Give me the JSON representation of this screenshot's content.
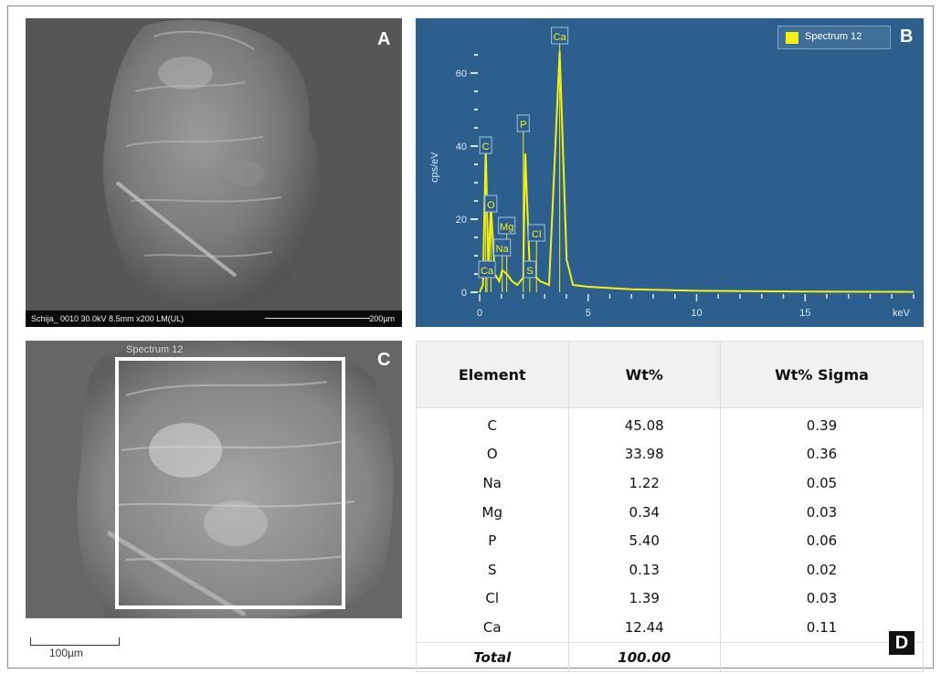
{
  "panels": {
    "a": {
      "letter": "A",
      "sem_info": "Schija_ 0010 30.0kV 8.5mm x200 LM(UL)",
      "scale_label": "200µm"
    },
    "b": {
      "letter": "B",
      "legend_label": "Spectrum 12"
    },
    "c": {
      "letter": "C",
      "roi_label": "Spectrum 12",
      "scale_label": "100µm"
    },
    "d": {
      "letter": "D",
      "headers": [
        "Element",
        "Wt%",
        "Wt% Sigma"
      ],
      "rows": [
        {
          "element": "C",
          "wt": "45.08",
          "sigma": "0.39"
        },
        {
          "element": "O",
          "wt": "33.98",
          "sigma": "0.36"
        },
        {
          "element": "Na",
          "wt": "1.22",
          "sigma": "0.05"
        },
        {
          "element": "Mg",
          "wt": "0.34",
          "sigma": "0.03"
        },
        {
          "element": "P",
          "wt": "5.40",
          "sigma": "0.06"
        },
        {
          "element": "S",
          "wt": "0.13",
          "sigma": "0.02"
        },
        {
          "element": "Cl",
          "wt": "1.39",
          "sigma": "0.03"
        },
        {
          "element": "Ca",
          "wt": "12.44",
          "sigma": "0.11"
        }
      ],
      "total": {
        "element": "Total",
        "wt": "100.00",
        "sigma": ""
      }
    }
  },
  "chart_data": {
    "type": "line",
    "title": "",
    "xlabel": "keV",
    "ylabel": "cps/eV",
    "xlim": [
      0,
      20
    ],
    "ylim": [
      0,
      70
    ],
    "x_ticks": [
      0,
      5,
      10,
      15
    ],
    "y_ticks": [
      0,
      20,
      40,
      60
    ],
    "series": [
      {
        "name": "Spectrum 12",
        "x": [
          0,
          0.15,
          0.28,
          0.4,
          0.52,
          0.7,
          0.9,
          1.04,
          1.25,
          1.5,
          1.74,
          2.01,
          2.1,
          2.31,
          2.5,
          2.62,
          2.8,
          3.2,
          3.69,
          4.01,
          4.3,
          5,
          7,
          10,
          15,
          20
        ],
        "y": [
          0,
          2,
          40,
          6,
          24,
          5,
          3,
          6,
          5,
          3,
          2,
          4,
          38,
          6,
          5,
          4,
          3,
          2,
          66,
          9,
          2,
          1.5,
          0.8,
          0.4,
          0.2,
          0.1
        ]
      }
    ],
    "peak_labels": [
      {
        "label": "C",
        "x": 0.28,
        "y": 40
      },
      {
        "label": "O",
        "x": 0.52,
        "y": 24
      },
      {
        "label": "Mg",
        "x": 1.25,
        "y": 18
      },
      {
        "label": "Na",
        "x": 1.04,
        "y": 12
      },
      {
        "label": "Ca",
        "x": 0.34,
        "y": 6
      },
      {
        "label": "P",
        "x": 2.01,
        "y": 46
      },
      {
        "label": "Cl",
        "x": 2.62,
        "y": 16
      },
      {
        "label": "S",
        "x": 2.31,
        "y": 6
      },
      {
        "label": "Ca",
        "x": 3.69,
        "y": 70
      }
    ],
    "colors": {
      "line": "#f5ef13",
      "background": "#2d5f8e",
      "tick": "#d9e6f2"
    }
  }
}
